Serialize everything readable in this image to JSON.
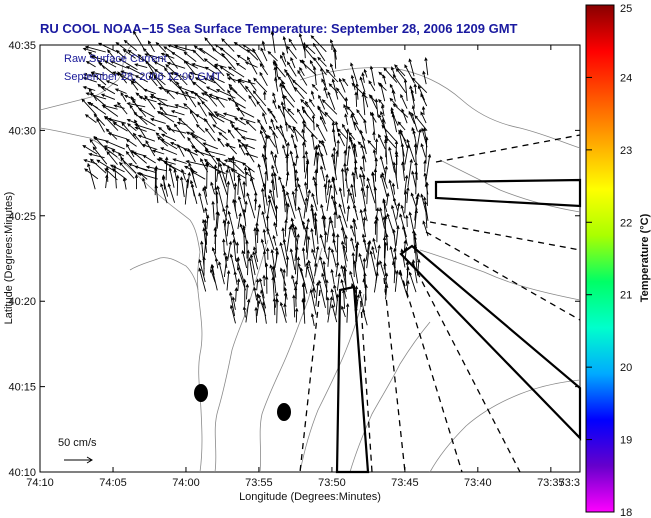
{
  "title": "RU COOL  NOAA−15  Sea Surface Temperature:  September 28, 2006 1209 GMT",
  "legend": {
    "line1": "Raw Surface Current",
    "line2": "September 28, 2006 12:00 GMT",
    "scale_label": "50 cm/s"
  },
  "axes": {
    "xlabel": "Longitude (Degrees:Minutes)",
    "ylabel": "Latitude (Degrees:Minutes)",
    "x_ticks": [
      "74:10",
      "74:05",
      "74:00",
      "73:55",
      "73:50",
      "73:45",
      "73:40",
      "73:35",
      "73:3"
    ],
    "y_ticks": [
      "40:35",
      "40:30",
      "40:25",
      "40:20",
      "40:15",
      "40:10"
    ]
  },
  "colorbar": {
    "title": "Temperature (°C)",
    "ticks": [
      "25",
      "24",
      "23",
      "22",
      "21",
      "20",
      "19",
      "18"
    ],
    "range": [
      18,
      25
    ],
    "colors": [
      "#ff00ff",
      "#6600cc",
      "#0000ff",
      "#00aaff",
      "#00ffcc",
      "#00ff66",
      "#aaff00",
      "#ffff00",
      "#ffaa00",
      "#ff5500",
      "#ff0000",
      "#880000"
    ]
  },
  "chart_data": {
    "type": "vector_field_map",
    "xlim": [
      -74.1667,
      -73.55
    ],
    "ylim": [
      40.1667,
      40.5833
    ],
    "x_ticks_deg": [
      -74.1667,
      -74.0833,
      -74.0,
      -73.9167,
      -73.8333,
      -73.75,
      -73.6667,
      -73.5833,
      -73.5
    ],
    "y_ticks_deg": [
      40.5833,
      40.5,
      40.4167,
      40.3333,
      40.25,
      40.1667
    ],
    "scale_cm_s": 50
  }
}
